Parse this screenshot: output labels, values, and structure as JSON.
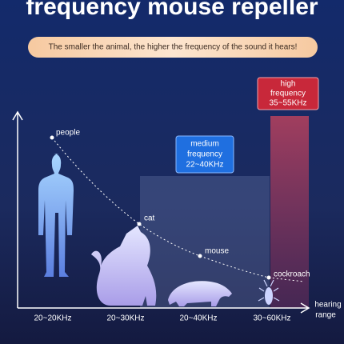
{
  "header": {
    "title": "frequency mouse repeller",
    "subtitle": "The smaller the animal, the higher the frequency of the sound it hears!"
  },
  "points": [
    {
      "label": "people"
    },
    {
      "label": "cat"
    },
    {
      "label": "mouse"
    },
    {
      "label": "cockroach"
    }
  ],
  "x_labels": [
    "20~20KHz",
    "20~30KHz",
    "20~40KHz",
    "30~60KHz"
  ],
  "axis_label": [
    "hearing",
    "range"
  ],
  "boxes": [
    {
      "lines": [
        "medium",
        "frequency",
        "22~40KHz"
      ]
    },
    {
      "lines": [
        "high",
        "frequency",
        "35~55KHz"
      ]
    }
  ]
}
